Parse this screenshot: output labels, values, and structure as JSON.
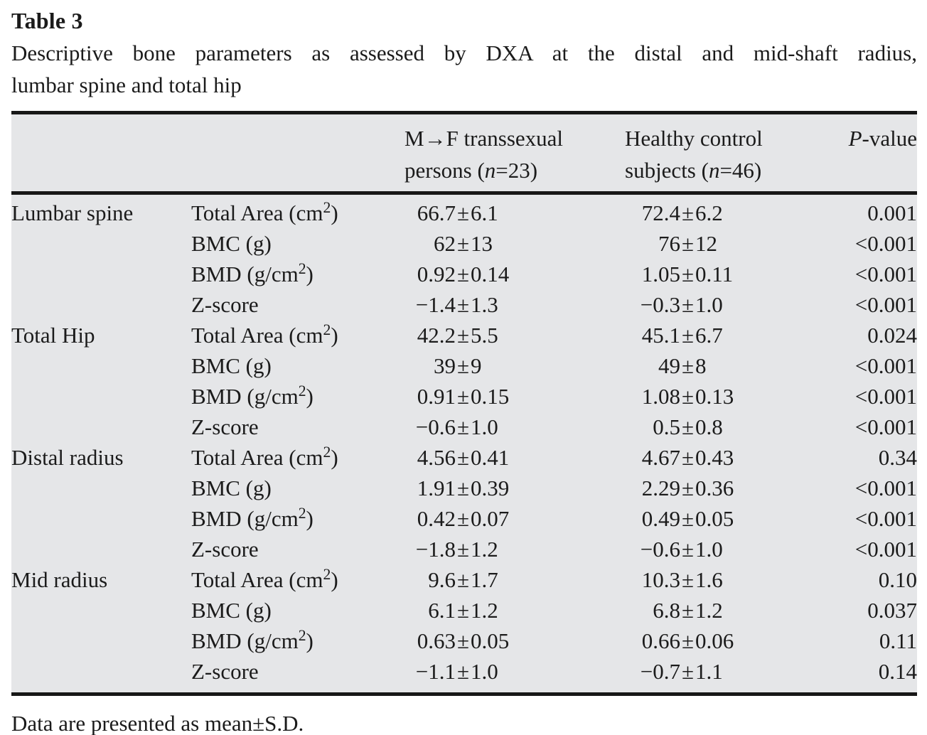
{
  "title": {
    "label": "Table 3",
    "caption_line1": "Descriptive bone parameters as assessed by DXA at the distal and mid-shaft radius,",
    "caption_line2": "lumbar spine and total hip"
  },
  "colors": {
    "table_background": "#e5e6e8",
    "rule": "#171717",
    "text": "#1b1b1b",
    "page_background": "#ffffff"
  },
  "table": {
    "header": {
      "col_mf": {
        "line1": "M→F transsexual",
        "line2_pre": "persons (",
        "n_italic": "n",
        "line2_post": "=23)"
      },
      "col_hc": {
        "line1": "Healthy control",
        "line2_pre": "subjects (",
        "n_italic": "n",
        "line2_post": "=46)"
      },
      "col_p": {
        "italic": "P",
        "rest": "-value"
      }
    },
    "sections": [
      {
        "group": "Lumbar spine",
        "rows": [
          {
            "param": "Total Area (cm²)",
            "mf": "66.7±6.1",
            "hc": "72.4±6.2",
            "p": "0.001"
          },
          {
            "param": "BMC (g)",
            "mf": "62±13",
            "hc": "76±12",
            "p": "<0.001"
          },
          {
            "param": "BMD (g/cm²)",
            "mf": "0.92±0.14",
            "hc": "1.05±0.11",
            "p": "<0.001"
          },
          {
            "param": "Z-score",
            "mf": "−1.4±1.3",
            "hc": "−0.3±1.0",
            "p": "<0.001"
          }
        ]
      },
      {
        "group": "Total Hip",
        "rows": [
          {
            "param": "Total Area (cm²)",
            "mf": "42.2±5.5",
            "hc": "45.1±6.7",
            "p": "0.024"
          },
          {
            "param": "BMC (g)",
            "mf": "39±9",
            "hc": "49±8",
            "p": "<0.001"
          },
          {
            "param": "BMD (g/cm²)",
            "mf": "0.91±0.15",
            "hc": "1.08±0.13",
            "p": "<0.001"
          },
          {
            "param": "Z-score",
            "mf": "−0.6±1.0",
            "hc": "0.5±0.8",
            "p": "<0.001"
          }
        ]
      },
      {
        "group": "Distal radius",
        "rows": [
          {
            "param": "Total Area (cm²)",
            "mf": "4.56±0.41",
            "hc": "4.67±0.43",
            "p": "0.34"
          },
          {
            "param": "BMC (g)",
            "mf": "1.91±0.39",
            "hc": "2.29±0.36",
            "p": "<0.001"
          },
          {
            "param": "BMD (g/cm²)",
            "mf": "0.42±0.07",
            "hc": "0.49±0.05",
            "p": "<0.001"
          },
          {
            "param": "Z-score",
            "mf": "−1.8±1.2",
            "hc": "−0.6±1.0",
            "p": "<0.001"
          }
        ]
      },
      {
        "group": "Mid radius",
        "rows": [
          {
            "param": "Total Area (cm²)",
            "mf": "9.6±1.7",
            "hc": "10.3±1.6",
            "p": "0.10"
          },
          {
            "param": "BMC (g)",
            "mf": "6.1±1.2",
            "hc": "6.8±1.2",
            "p": "0.037"
          },
          {
            "param": "BMD (g/cm²)",
            "mf": "0.63±0.05",
            "hc": "0.66±0.06",
            "p": "0.11"
          },
          {
            "param": "Z-score",
            "mf": "−1.1±1.0",
            "hc": "−0.7±1.1",
            "p": "0.14"
          }
        ]
      }
    ]
  },
  "footnote": {
    "text": "Data are presented as mean±S.D."
  }
}
